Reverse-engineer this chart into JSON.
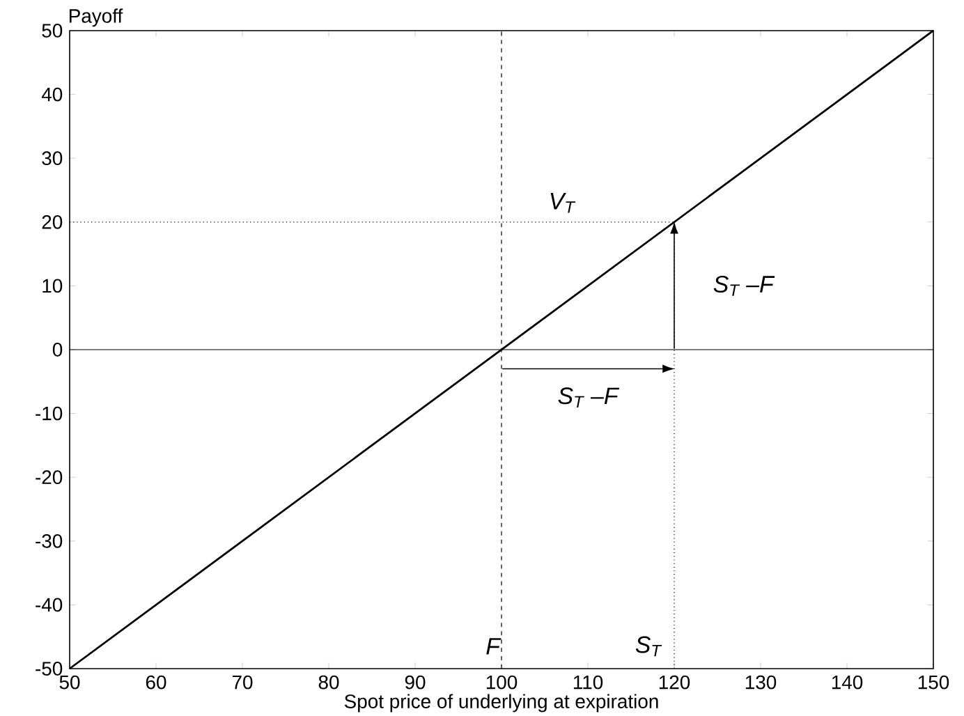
{
  "chart_data": {
    "type": "line",
    "xlabel": "Spot price of underlying at expiration",
    "ylabel": "Payoff",
    "xlim": [
      50,
      150
    ],
    "ylim": [
      -50,
      50
    ],
    "xticks": [
      50,
      60,
      70,
      80,
      90,
      100,
      110,
      120,
      130,
      140,
      150
    ],
    "yticks": [
      -50,
      -40,
      -30,
      -20,
      -10,
      0,
      10,
      20,
      30,
      40,
      50
    ],
    "series": [
      {
        "x": [
          50,
          150
        ],
        "values": [
          -50,
          50
        ],
        "color": "#000000",
        "line_style": "solid"
      },
      {
        "x": [
          50,
          120
        ],
        "values": [
          20,
          20
        ],
        "color": "#000000",
        "line_style": "dotted"
      }
    ],
    "ref_lines": [
      {
        "axis": "y",
        "value": 0,
        "color": "#000000",
        "line_style": "solid"
      },
      {
        "axis": "x",
        "value": 100,
        "color": "#000000",
        "line_style": "dashed"
      }
    ],
    "annotations": [
      "V$_{T}$",
      "S$_{T}$ –F",
      "S$_{T}$ –F",
      "F",
      "S$_{T}$"
    ]
  }
}
